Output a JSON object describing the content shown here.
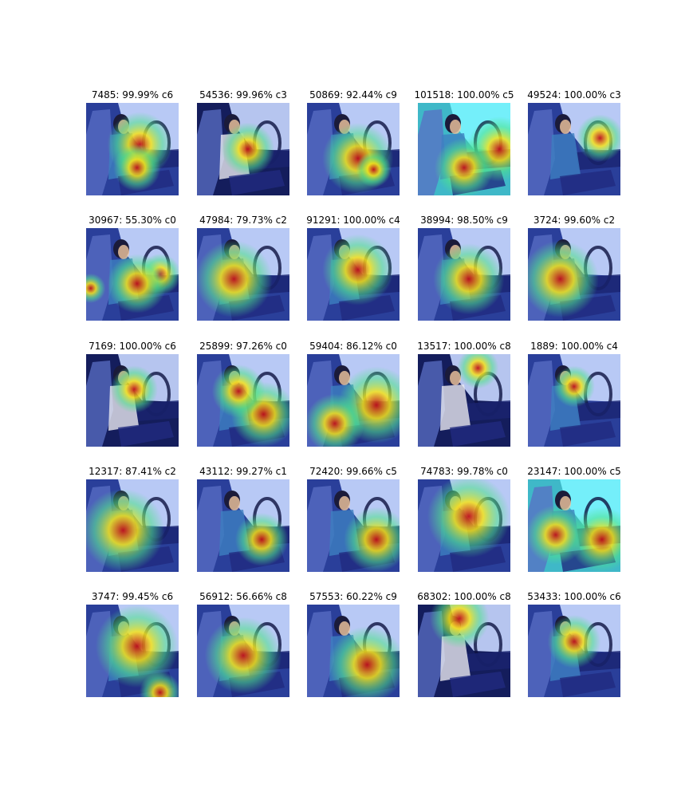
{
  "palette": {
    "cabin": "#2a3f9a",
    "window": "#c8d8ff",
    "window_cyan": "#7af5ff",
    "heat_hot": "#c0101a",
    "heat_warm": "#f5e31a",
    "heat_mid": "#4ee38a",
    "skin": "#f2c8a0"
  },
  "rows": [
    [
      {
        "caption": "7485: 99.99% c6",
        "tint": "blue",
        "heat": [
          [
            0.58,
            0.45,
            0.22
          ],
          [
            0.55,
            0.7,
            0.16
          ]
        ]
      },
      {
        "caption": "54536: 99.96% c3",
        "tint": "dark",
        "heat": [
          [
            0.55,
            0.5,
            0.18
          ]
        ]
      },
      {
        "caption": "50869: 92.44% c9",
        "tint": "blue",
        "heat": [
          [
            0.55,
            0.6,
            0.24
          ],
          [
            0.72,
            0.72,
            0.12
          ]
        ]
      },
      {
        "caption": "101518: 100.00% c5",
        "tint": "cyan",
        "heat": [
          [
            0.88,
            0.5,
            0.22
          ],
          [
            0.5,
            0.7,
            0.2
          ]
        ]
      },
      {
        "caption": "49524: 100.00% c3",
        "tint": "blue",
        "heat": [
          [
            0.78,
            0.38,
            0.16
          ]
        ]
      }
    ],
    [
      {
        "caption": "30967: 55.30% c0",
        "tint": "blue",
        "heat": [
          [
            0.8,
            0.5,
            0.14
          ],
          [
            0.05,
            0.65,
            0.1
          ],
          [
            0.55,
            0.6,
            0.2
          ]
        ]
      },
      {
        "caption": "47984: 79.73% c2",
        "tint": "blue",
        "heat": [
          [
            0.4,
            0.55,
            0.26
          ]
        ]
      },
      {
        "caption": "91291: 100.00% c4",
        "tint": "blue",
        "heat": [
          [
            0.55,
            0.45,
            0.24
          ]
        ]
      },
      {
        "caption": "38994: 98.50% c9",
        "tint": "blue",
        "heat": [
          [
            0.55,
            0.55,
            0.24
          ]
        ]
      },
      {
        "caption": "3724: 99.60% c2",
        "tint": "blue",
        "heat": [
          [
            0.35,
            0.55,
            0.26
          ]
        ]
      }
    ],
    [
      {
        "caption": "7169: 100.00% c6",
        "tint": "dark",
        "heat": [
          [
            0.52,
            0.38,
            0.16
          ]
        ]
      },
      {
        "caption": "25899: 97.26% c0",
        "tint": "blue",
        "heat": [
          [
            0.72,
            0.65,
            0.22
          ],
          [
            0.45,
            0.4,
            0.18
          ]
        ]
      },
      {
        "caption": "59404: 86.12% c0",
        "tint": "blue",
        "heat": [
          [
            0.75,
            0.55,
            0.26
          ],
          [
            0.3,
            0.75,
            0.2
          ]
        ]
      },
      {
        "caption": "13517: 100.00% c8",
        "tint": "dark",
        "heat": [
          [
            0.65,
            0.15,
            0.14
          ]
        ]
      },
      {
        "caption": "1889: 100.00% c4",
        "tint": "blue",
        "heat": [
          [
            0.5,
            0.35,
            0.14
          ]
        ]
      }
    ],
    [
      {
        "caption": "12317: 87.41% c2",
        "tint": "blue",
        "heat": [
          [
            0.4,
            0.55,
            0.28
          ]
        ]
      },
      {
        "caption": "43112: 99.27% c1",
        "tint": "blue",
        "heat": [
          [
            0.7,
            0.65,
            0.18
          ]
        ]
      },
      {
        "caption": "72420: 99.66% c5",
        "tint": "blue",
        "heat": [
          [
            0.75,
            0.65,
            0.22
          ]
        ]
      },
      {
        "caption": "74783: 99.78% c0",
        "tint": "blue",
        "heat": [
          [
            0.55,
            0.4,
            0.28
          ]
        ]
      },
      {
        "caption": "23147: 100.00% c5",
        "tint": "cyan",
        "heat": [
          [
            0.8,
            0.65,
            0.22
          ],
          [
            0.3,
            0.6,
            0.2
          ]
        ]
      }
    ],
    [
      {
        "caption": "3747: 99.45% c6",
        "tint": "blue",
        "heat": [
          [
            0.55,
            0.45,
            0.28
          ],
          [
            0.8,
            0.95,
            0.14
          ]
        ]
      },
      {
        "caption": "56912: 56.66% c8",
        "tint": "blue",
        "heat": [
          [
            0.5,
            0.55,
            0.26
          ]
        ]
      },
      {
        "caption": "57553: 60.22% c9",
        "tint": "blue",
        "heat": [
          [
            0.65,
            0.65,
            0.26
          ]
        ]
      },
      {
        "caption": "68302: 100.00% c8",
        "tint": "dark",
        "heat": [
          [
            0.45,
            0.15,
            0.2
          ]
        ]
      },
      {
        "caption": "53433: 100.00% c6",
        "tint": "blue",
        "heat": [
          [
            0.5,
            0.4,
            0.18
          ]
        ]
      }
    ]
  ]
}
